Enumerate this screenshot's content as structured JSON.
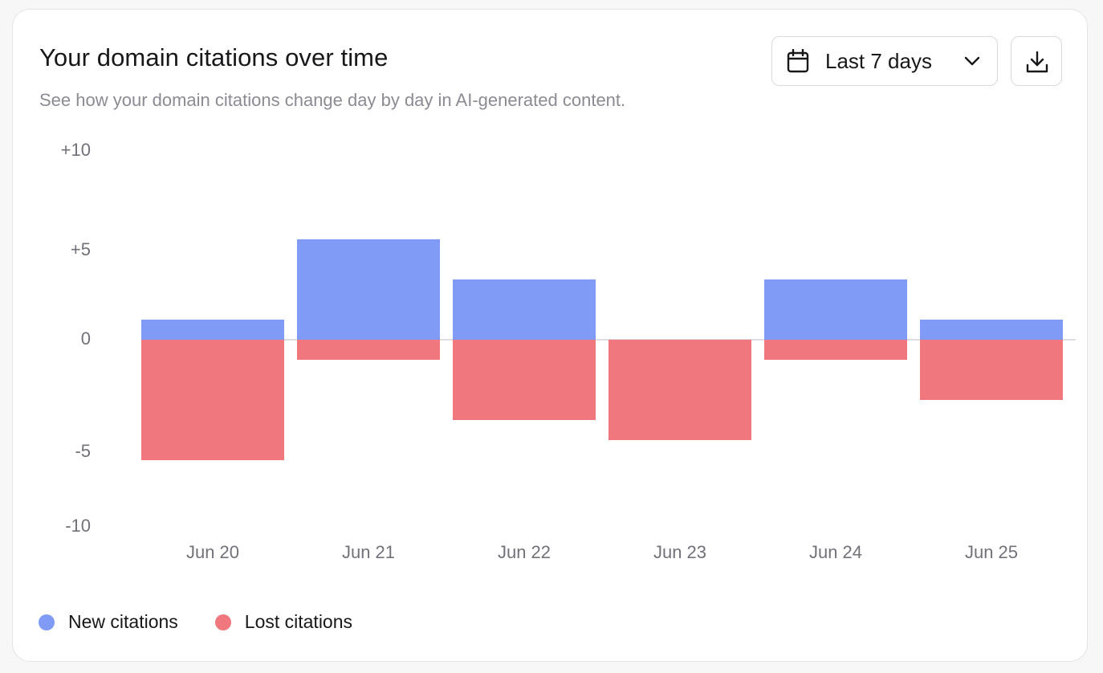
{
  "header": {
    "title": "Your domain citations over time",
    "subtitle": "See how your domain citations change day by day in AI-generated content."
  },
  "controls": {
    "range_label": "Last 7 days",
    "range_icon": "calendar-icon",
    "chevron_icon": "chevron-down-icon",
    "download_icon": "download-icon"
  },
  "colors": {
    "new": "#7f9bf5",
    "lost": "#ef777d",
    "zero_line": "#d4d4d8"
  },
  "chart_data": {
    "type": "bar",
    "categories": [
      "Jun 20",
      "Jun 21",
      "Jun 22",
      "Jun 23",
      "Jun 24",
      "Jun 25"
    ],
    "series": [
      {
        "name": "New citations",
        "values": [
          1,
          5,
          3,
          0,
          3,
          1
        ]
      },
      {
        "name": "Lost citations",
        "values": [
          -6,
          -1,
          -4,
          -5,
          -1,
          -3
        ]
      }
    ],
    "y_ticks": [
      "+10",
      "+5",
      "0",
      "-5",
      "-10"
    ],
    "ylim": [
      -10,
      10
    ],
    "stacked": true,
    "grid": false,
    "zero_line": true,
    "legend_position": "bottom-left",
    "title": "",
    "xlabel": "",
    "ylabel": ""
  }
}
